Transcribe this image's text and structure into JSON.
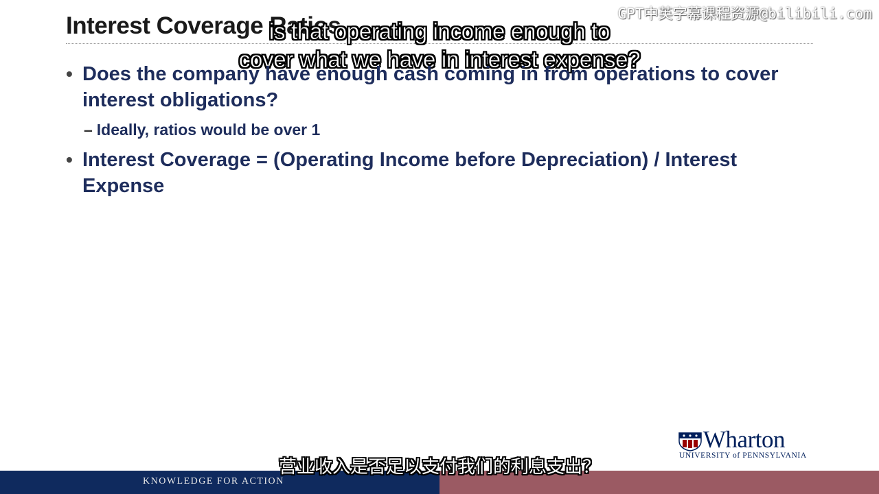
{
  "slide": {
    "title": "Interest Coverage Ratios",
    "bullets": [
      {
        "text": "Does the company have enough cash coming in from operations to cover interest obligations?",
        "sub_bullets": [
          "Ideally, ratios would be over 1"
        ]
      },
      {
        "text": "Interest Coverage = (Operating Income before Depreciation) / Interest Expense",
        "sub_bullets": []
      }
    ],
    "bullet_symbol": "•",
    "sub_bullet_symbol": "–"
  },
  "subtitles": {
    "english_line1": "is that operating income enough to",
    "english_line2": "cover what we have in interest expense?",
    "chinese": "营业收入是否足以支付我们的利息支出？"
  },
  "watermark": "GPT中英字幕课程资源@bilibili.com",
  "logo": {
    "name": "Wharton",
    "university": "UNIVERSITY of PENNSYLVANIA",
    "icon": "penn-shield-icon"
  },
  "footer": {
    "tagline": "KNOWLEDGE FOR ACTION",
    "left_color": "#0f2a5e",
    "right_color": "#9b5a63"
  },
  "colors": {
    "title": "#1a1a1a",
    "bullet_text": "#1e2d5c",
    "brand_navy": "#011f5b"
  }
}
